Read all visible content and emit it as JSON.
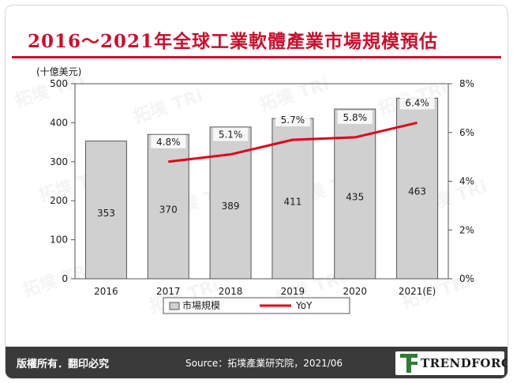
{
  "title": "2016～2021年全球工業軟體產業市場規模預估",
  "footer": {
    "copyright": "版權所有．翻印必究",
    "source": "Source：拓墣產業研究院，2021/06",
    "logo_text": "TRENDFORCE"
  },
  "watermark_text": "拓墣 TRi",
  "colors": {
    "title": "#c8102e",
    "bar": "#d0d0d0",
    "line": "#e0001b",
    "footer": "#3a3a3a"
  },
  "chart_data": {
    "type": "bar",
    "title": "",
    "unit_label": "(十億美元)",
    "categories": [
      "2016",
      "2017",
      "2018",
      "2019",
      "2020",
      "2021(E)"
    ],
    "series": [
      {
        "name": "市場規模",
        "type": "bar",
        "axis": "left",
        "values": [
          353,
          370,
          389,
          411,
          435,
          463
        ],
        "labels": [
          "353",
          "370",
          "389",
          "411",
          "435",
          "463"
        ]
      },
      {
        "name": "YoY",
        "type": "line",
        "axis": "right",
        "values": [
          null,
          4.8,
          5.1,
          5.7,
          5.8,
          6.4
        ],
        "labels": [
          "",
          "4.8%",
          "5.1%",
          "5.7%",
          "5.8%",
          "6.4%"
        ]
      }
    ],
    "left_axis": {
      "min": 0,
      "max": 500,
      "ticks": [
        "0",
        "100",
        "200",
        "300",
        "400",
        "500"
      ]
    },
    "right_axis": {
      "min": 0,
      "max": 8,
      "ticks": [
        "0%",
        "2%",
        "4%",
        "6%",
        "8%"
      ]
    },
    "legend": {
      "position": "bottom",
      "items": [
        "市場規模",
        "YoY"
      ]
    },
    "grid": false
  }
}
